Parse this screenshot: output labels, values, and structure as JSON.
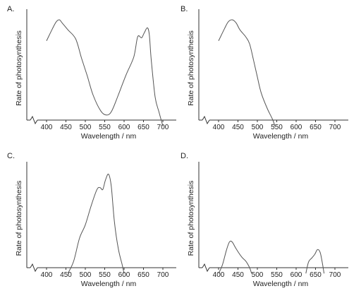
{
  "figure": {
    "background": "#ffffff",
    "curve_color": "#555555",
    "axis_color": "#333333"
  },
  "chart_data": [
    {
      "panel_label": "A.",
      "type": "line",
      "xlabel": "Wavelength / nm",
      "ylabel": "Rate of photosynthesis",
      "x_ticks": [
        400,
        450,
        500,
        550,
        600,
        650,
        700
      ],
      "xlim": [
        350,
        720
      ],
      "ylim": [
        0,
        1
      ],
      "axis_break_on_x": true,
      "grid": false,
      "series": [
        {
          "x": [
            400,
            415,
            425,
            433,
            440,
            455,
            475,
            490,
            505,
            520,
            540,
            555,
            568,
            585,
            605,
            625,
            635,
            645,
            652,
            660,
            665,
            670,
            680,
            690,
            700
          ],
          "y": [
            0.79,
            0.91,
            0.98,
            1.0,
            0.97,
            0.9,
            0.81,
            0.62,
            0.44,
            0.25,
            0.09,
            0.05,
            0.09,
            0.25,
            0.45,
            0.63,
            0.83,
            0.82,
            0.87,
            0.92,
            0.85,
            0.6,
            0.23,
            0.08,
            -0.06
          ]
        }
      ]
    },
    {
      "panel_label": "B.",
      "type": "line",
      "xlabel": "Wavelength / nm",
      "ylabel": "Rate of photosynthesis",
      "x_ticks": [
        400,
        450,
        500,
        550,
        600,
        650,
        700
      ],
      "xlim": [
        350,
        720
      ],
      "ylim": [
        0,
        1
      ],
      "axis_break_on_x": true,
      "grid": false,
      "series": [
        {
          "x": [
            400,
            415,
            425,
            435,
            445,
            455,
            470,
            480,
            490,
            500,
            510,
            525,
            540,
            545
          ],
          "y": [
            0.79,
            0.91,
            0.98,
            1.0,
            0.97,
            0.9,
            0.83,
            0.76,
            0.6,
            0.43,
            0.27,
            0.12,
            0.0,
            -0.06
          ]
        }
      ]
    },
    {
      "panel_label": "C.",
      "type": "line",
      "xlabel": "Wavelength / nm",
      "ylabel": "Rate of photosynthesis",
      "x_ticks": [
        400,
        450,
        500,
        550,
        600,
        650,
        700
      ],
      "xlim": [
        350,
        720
      ],
      "ylim": [
        0,
        1
      ],
      "axis_break_on_x": true,
      "grid": false,
      "series": [
        {
          "x": [
            455,
            470,
            485,
            500,
            515,
            530,
            538,
            545,
            552,
            560,
            567,
            575,
            585,
            595,
            600
          ],
          "y": [
            -0.06,
            0.07,
            0.31,
            0.45,
            0.65,
            0.82,
            0.84,
            0.82,
            0.92,
            0.98,
            0.85,
            0.48,
            0.2,
            0.03,
            -0.06
          ]
        }
      ]
    },
    {
      "panel_label": "D.",
      "type": "line",
      "xlabel": "Wavelength / nm",
      "ylabel": "Rate of photosynthesis",
      "x_ticks": [
        400,
        450,
        500,
        550,
        600,
        650,
        700
      ],
      "xlim": [
        350,
        720
      ],
      "ylim": [
        0,
        1
      ],
      "axis_break_on_x": true,
      "grid": false,
      "series": [
        {
          "x": [
            400,
            410,
            420,
            428,
            435,
            445,
            460,
            470,
            480,
            485
          ],
          "y": [
            -0.06,
            0.03,
            0.18,
            0.27,
            0.27,
            0.2,
            0.11,
            0.07,
            0.0,
            -0.06
          ]
        },
        {
          "x": [
            625,
            632,
            640,
            648,
            655,
            662,
            668,
            672
          ],
          "y": [
            -0.06,
            0.06,
            0.1,
            0.14,
            0.19,
            0.16,
            0.04,
            -0.06
          ]
        }
      ]
    }
  ]
}
